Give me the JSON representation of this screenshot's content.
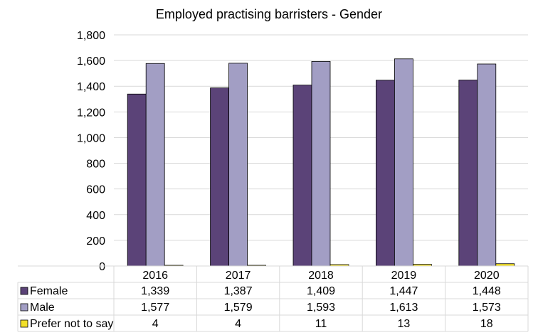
{
  "chart_data": {
    "type": "bar",
    "title": "Employed practising barristers - Gender",
    "categories": [
      "2016",
      "2017",
      "2018",
      "2019",
      "2020"
    ],
    "yticks": [
      "0",
      "200",
      "400",
      "600",
      "800",
      "1,000",
      "1,200",
      "1,400",
      "1,600",
      "1,800"
    ],
    "ylim": [
      0,
      1800
    ],
    "grid": true,
    "legend": "data table below chart",
    "series": [
      {
        "name": "Female",
        "color": "#5b4378",
        "values": [
          1339,
          1387,
          1409,
          1447,
          1448
        ],
        "labels": [
          "1,339",
          "1,387",
          "1,409",
          "1,447",
          "1,448"
        ]
      },
      {
        "name": "Male",
        "color": "#a29ec4",
        "values": [
          1577,
          1579,
          1593,
          1613,
          1573
        ],
        "labels": [
          "1,577",
          "1,579",
          "1,593",
          "1,613",
          "1,573"
        ]
      },
      {
        "name": "Prefer not to say",
        "color": "#f2e02a",
        "values": [
          4,
          4,
          11,
          13,
          18
        ],
        "labels": [
          "4",
          "4",
          "11",
          "13",
          "18"
        ]
      }
    ]
  }
}
